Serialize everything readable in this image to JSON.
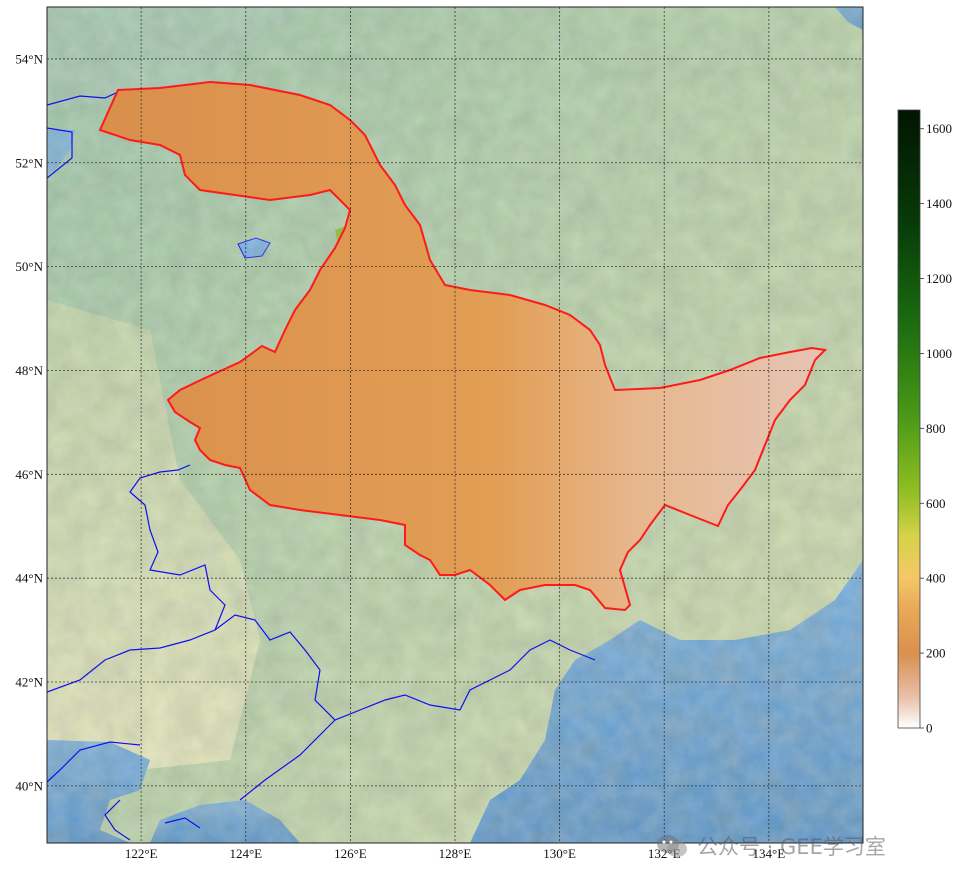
{
  "map": {
    "lon_ticks": [
      "122°E",
      "124°E",
      "126°E",
      "128°E",
      "130°E",
      "132°E",
      "134°E"
    ],
    "lat_ticks": [
      "54°N",
      "52°N",
      "50°N",
      "48°N",
      "46°N",
      "44°N",
      "42°N",
      "40°N"
    ],
    "lon_range": [
      120.2,
      135.8
    ],
    "lat_range": [
      38.9,
      55.0
    ],
    "gridlines": "on",
    "layers": [
      "shaded-relief-basemap",
      "elevation-raster",
      "region-boundary",
      "provincial-borders"
    ],
    "boundary_color": "#ff1a1a",
    "province_border_color": "#1010ee",
    "sea_color": "#6fa3d2"
  },
  "colorbar": {
    "ticks": [
      "0",
      "200",
      "400",
      "600",
      "800",
      "1000",
      "1200",
      "1400",
      "1600"
    ],
    "range": [
      0,
      1650
    ],
    "colors": [
      "#ffffff",
      "#e8c0a8",
      "#d99050",
      "#e8a858",
      "#f5c865",
      "#d6d24a",
      "#92bf24",
      "#4b9a18",
      "#1a6a10",
      "#083a08",
      "#021502"
    ]
  },
  "watermark": {
    "text": "公众号 · GEE学习室",
    "icon": "wechat-icon"
  }
}
